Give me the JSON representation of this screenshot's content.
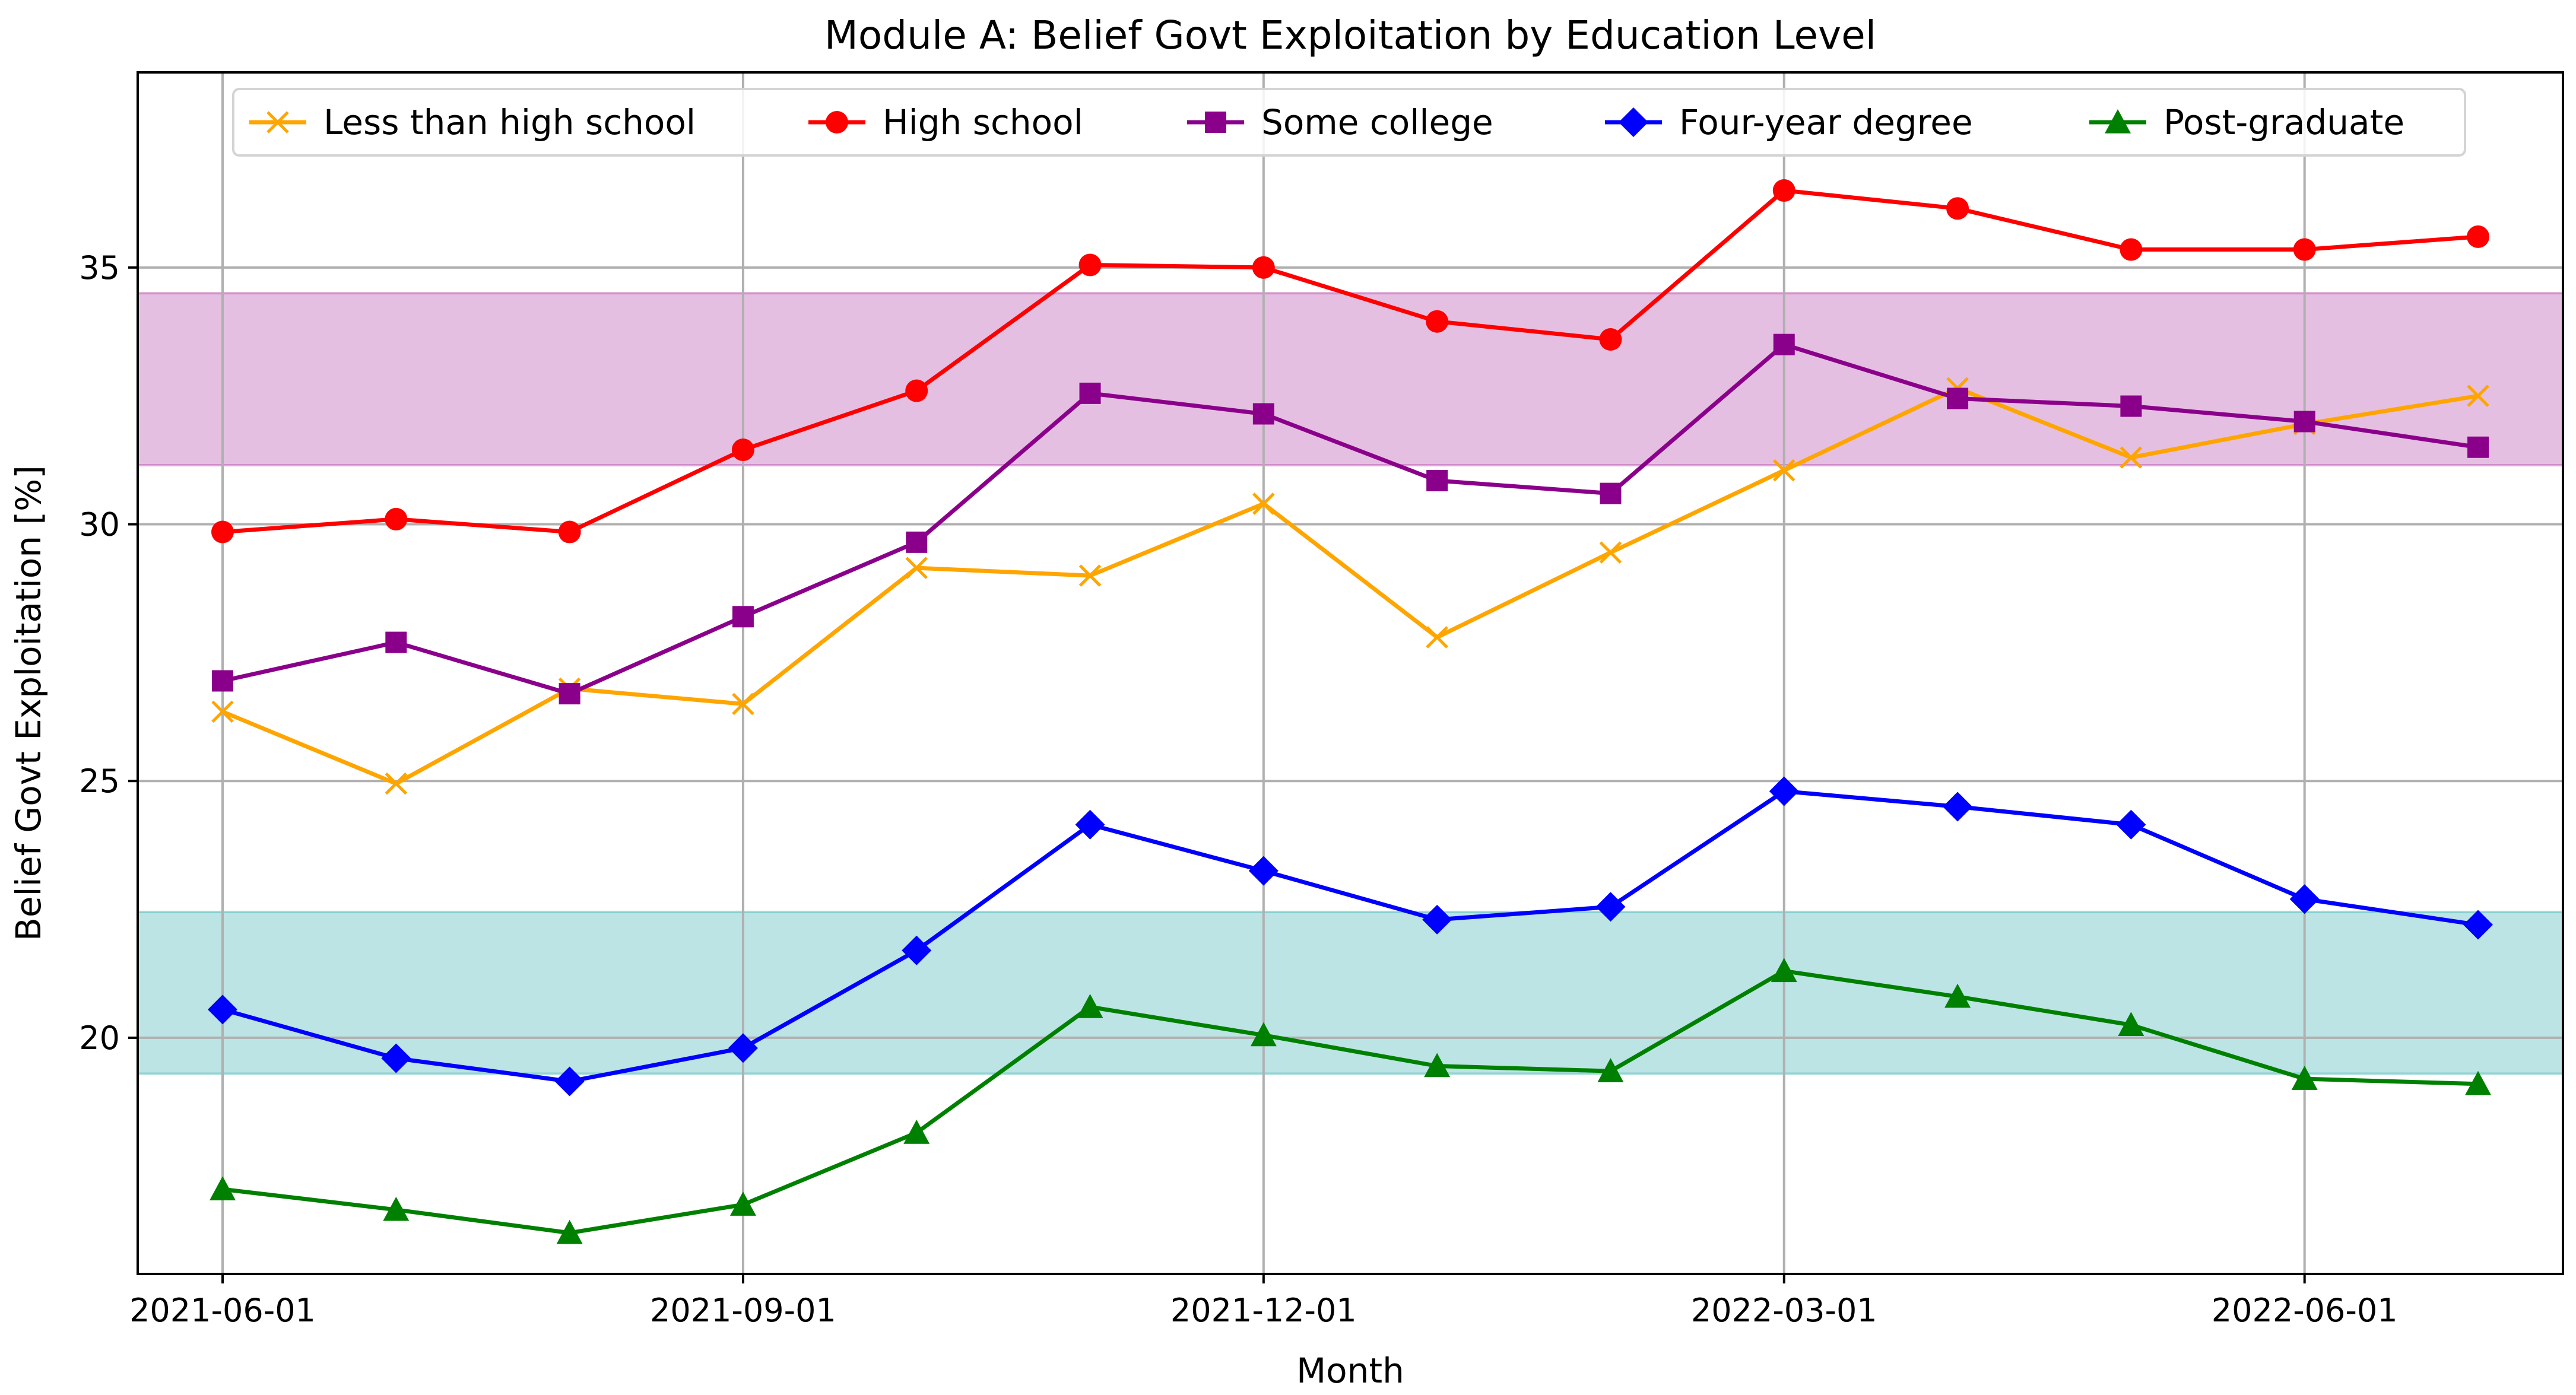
{
  "chart_data": {
    "type": "line",
    "title": "Module A: Belief Govt Exploitation by Education Level",
    "xlabel": "Month",
    "ylabel": "Belief Govt Exploitation [%]",
    "ylim": [
      15.4,
      38.8
    ],
    "yticks": [
      20,
      25,
      30,
      35
    ],
    "x": [
      "2021-06-01",
      "2021-07-01",
      "2021-08-01",
      "2021-09-01",
      "2021-10-01",
      "2021-11-01",
      "2021-12-01",
      "2022-01-01",
      "2022-02-01",
      "2022-03-01",
      "2022-04-01",
      "2022-05-01",
      "2022-06-01",
      "2022-07-01"
    ],
    "xtick_labels": [
      "2021-06-01",
      "2021-09-01",
      "2021-12-01",
      "2022-03-01",
      "2022-06-01"
    ],
    "xtick_indices": [
      0,
      3,
      6,
      9,
      12
    ],
    "grid": true,
    "legend_position": "top-center",
    "bands": [
      {
        "name": "upper-band",
        "from": 31.15,
        "to": 34.5,
        "color": "#c266b8"
      },
      {
        "name": "lower-band",
        "from": 19.3,
        "to": 22.45,
        "color": "#5fbfbf"
      }
    ],
    "series": [
      {
        "name": "Less than high school",
        "color": "#ffa500",
        "marker": "x",
        "values": [
          26.35,
          24.95,
          26.8,
          26.5,
          29.15,
          29.0,
          30.4,
          27.8,
          29.45,
          31.05,
          32.65,
          31.3,
          31.95,
          32.5
        ]
      },
      {
        "name": "High school",
        "color": "#ff0000",
        "marker": "circle",
        "values": [
          29.85,
          30.1,
          29.85,
          31.45,
          32.6,
          35.05,
          35.0,
          33.95,
          33.6,
          36.5,
          36.15,
          35.35,
          35.35,
          35.6
        ]
      },
      {
        "name": "Some college",
        "color": "#8b008b",
        "marker": "square",
        "values": [
          26.95,
          27.7,
          26.7,
          28.2,
          29.65,
          32.55,
          32.15,
          30.85,
          30.6,
          33.5,
          32.45,
          32.3,
          32.0,
          31.5
        ]
      },
      {
        "name": "Four-year degree",
        "color": "#0000ff",
        "marker": "diamond",
        "values": [
          20.55,
          19.6,
          19.15,
          19.8,
          21.7,
          24.15,
          23.25,
          22.3,
          22.55,
          24.8,
          24.5,
          24.15,
          22.7,
          22.2
        ]
      },
      {
        "name": "Post-graduate",
        "color": "#008000",
        "marker": "triangle",
        "values": [
          17.05,
          16.65,
          16.2,
          16.75,
          18.15,
          20.6,
          20.05,
          19.45,
          19.35,
          21.3,
          20.8,
          20.25,
          19.2,
          19.1
        ]
      }
    ]
  }
}
